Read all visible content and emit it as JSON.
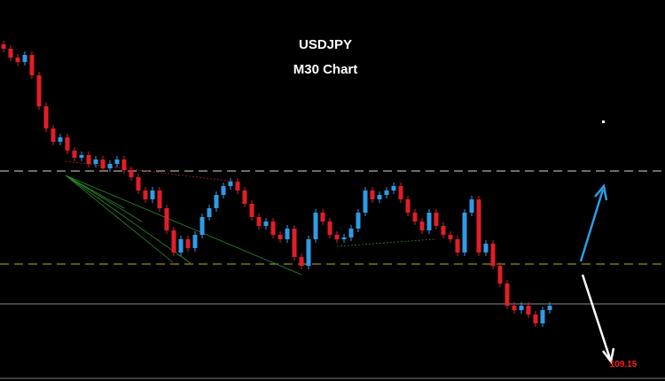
{
  "chart_data": {
    "type": "candlestick",
    "title": "USDJPY",
    "subtitle": "M30 Chart",
    "ylim": [
      109.05,
      111.2
    ],
    "up_color": "#2f9be6",
    "down_color": "#e01e28",
    "open": [
      110.95,
      110.925,
      110.875,
      110.85,
      110.89,
      110.775,
      110.6,
      110.475,
      110.4,
      110.425,
      110.35,
      110.31,
      110.325,
      110.275,
      110.3,
      110.25,
      110.275,
      110.3,
      110.24,
      110.2,
      110.125,
      110.075,
      110.125,
      110.025,
      109.9,
      109.775,
      109.85,
      109.8,
      109.875,
      109.975,
      110.025,
      110.1,
      110.15,
      110.175,
      110.125,
      110.05,
      109.975,
      109.925,
      109.95,
      109.875,
      109.85,
      109.91,
      109.75,
      109.7,
      109.85,
      110.0,
      109.95,
      109.875,
      109.85,
      109.86,
      109.91,
      110.0,
      110.125,
      110.075,
      110.1,
      110.125,
      110.15,
      110.075,
      110.0,
      109.95,
      109.9,
      110.0,
      109.925,
      109.875,
      109.85,
      109.775,
      110.0,
      110.075,
      109.775,
      109.825,
      109.7,
      109.6,
      109.475,
      109.45,
      109.475,
      109.425,
      109.375,
      109.45
    ],
    "close": [
      110.925,
      110.875,
      110.85,
      110.89,
      110.775,
      110.6,
      110.475,
      110.4,
      110.425,
      110.35,
      110.31,
      110.325,
      110.275,
      110.3,
      110.25,
      110.275,
      110.3,
      110.24,
      110.2,
      110.125,
      110.075,
      110.125,
      110.025,
      109.9,
      109.775,
      109.85,
      109.8,
      109.875,
      109.975,
      110.025,
      110.1,
      110.15,
      110.175,
      110.125,
      110.05,
      109.975,
      109.925,
      109.95,
      109.875,
      109.85,
      109.91,
      109.75,
      109.7,
      109.85,
      110.0,
      109.95,
      109.875,
      109.85,
      109.86,
      109.91,
      110.0,
      110.125,
      110.075,
      110.1,
      110.125,
      110.15,
      110.075,
      110.0,
      109.95,
      109.9,
      110.0,
      109.925,
      109.875,
      109.85,
      109.775,
      110.0,
      110.075,
      109.775,
      109.825,
      109.7,
      109.6,
      109.475,
      109.45,
      109.475,
      109.425,
      109.375,
      109.45,
      109.475
    ],
    "levels": [
      {
        "value": 110.235,
        "color": "#d8d8d8",
        "style": "dashed"
      },
      {
        "value": 109.71,
        "color": "#b5b800",
        "style": "dashed"
      },
      {
        "value": 109.485,
        "color": "#8c8c8c",
        "style": "solid"
      }
    ],
    "target": 109.15,
    "target_color": "#ff1a1a"
  }
}
